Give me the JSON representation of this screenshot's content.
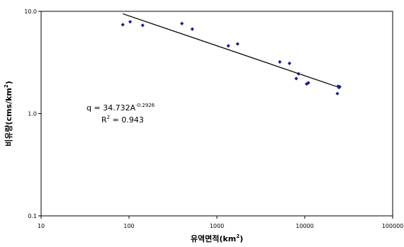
{
  "chart_data": {
    "type": "scatter",
    "x_scale": "log",
    "y_scale": "log",
    "xlim": [
      10,
      100000
    ],
    "ylim": [
      0.1,
      10.0
    ],
    "x_ticks": [
      "10",
      "100",
      "1000",
      "10000",
      "100000"
    ],
    "y_ticks": [
      "0.1",
      "1.0",
      "10.0"
    ],
    "xlabel_base": "유역면적(km",
    "xlabel_sup": "2",
    "xlabel_end": ")",
    "ylabel_base": "비유량(cms/km",
    "ylabel_sup": "2",
    "ylabel_end": ")",
    "marker_color": "#1a1a8c",
    "line_color": "#000000",
    "points": [
      {
        "x": 85,
        "y": 7.4
      },
      {
        "x": 103,
        "y": 7.9
      },
      {
        "x": 143,
        "y": 7.3
      },
      {
        "x": 400,
        "y": 7.6
      },
      {
        "x": 525,
        "y": 6.7
      },
      {
        "x": 1350,
        "y": 4.6
      },
      {
        "x": 1720,
        "y": 4.8
      },
      {
        "x": 5200,
        "y": 3.2
      },
      {
        "x": 6700,
        "y": 3.1
      },
      {
        "x": 8000,
        "y": 2.2
      },
      {
        "x": 8500,
        "y": 2.45
      },
      {
        "x": 10500,
        "y": 1.95
      },
      {
        "x": 11000,
        "y": 2.0
      },
      {
        "x": 23500,
        "y": 1.57
      },
      {
        "x": 24000,
        "y": 1.85
      },
      {
        "x": 24500,
        "y": 1.8
      },
      {
        "x": 25000,
        "y": 1.83
      }
    ],
    "trendline": {
      "a": 34.732,
      "b": -0.2926,
      "x_start": 85,
      "x_end": 25000
    },
    "equation": {
      "base": "q = 34.732A",
      "exponent": "-0.2926",
      "r2_label": "R",
      "r2_sup": "2",
      "r2_value": " = 0.943"
    }
  }
}
